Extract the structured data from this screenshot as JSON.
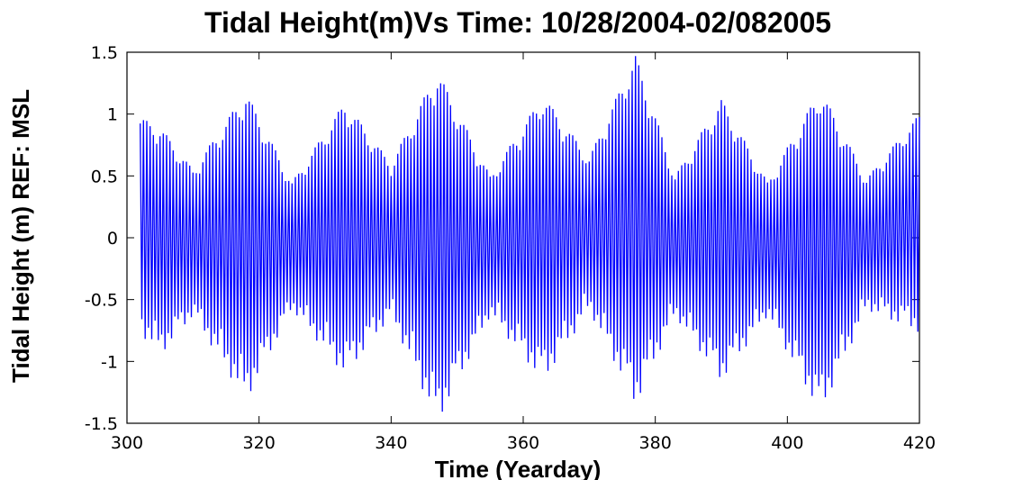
{
  "chart_data": {
    "type": "line",
    "title": "Tidal Height(m)Vs Time: 10/28/2004-02/082005",
    "xlabel": "Time (Yearday)",
    "ylabel": "Tidal Height (m) REF: MSL",
    "xlim": [
      300,
      420
    ],
    "ylim": [
      -1.5,
      1.5
    ],
    "x_ticks": [
      300,
      320,
      340,
      360,
      380,
      400,
      420
    ],
    "y_ticks": [
      -1.5,
      -1,
      -0.5,
      0,
      0.5,
      1,
      1.5
    ],
    "x_tick_labels": [
      "300",
      "320",
      "340",
      "360",
      "380",
      "400",
      "420"
    ],
    "y_tick_labels": [
      "-1.5",
      "-1",
      "-0.5",
      "0",
      "0.5",
      "1",
      "1.5"
    ],
    "grid": false,
    "series": [
      {
        "color": "#0000ff",
        "sampling_interval_days": 0.25,
        "envelope": {
          "yearday": [
            302,
            305,
            310,
            318,
            325,
            333,
            340,
            347,
            355,
            363,
            370,
            377,
            383,
            390,
            397,
            405,
            412,
            420
          ],
          "max": [
            0.97,
            0.9,
            0.55,
            1.18,
            0.45,
            1.1,
            0.6,
            1.35,
            0.5,
            1.15,
            0.65,
            1.48,
            0.5,
            1.12,
            0.45,
            1.2,
            0.48,
            1.0
          ],
          "min": [
            -0.72,
            -0.9,
            -0.6,
            -1.25,
            -0.55,
            -1.05,
            -0.6,
            -1.42,
            -0.6,
            -1.1,
            -0.55,
            -1.28,
            -0.6,
            -1.1,
            -0.6,
            -1.35,
            -0.55,
            -0.72
          ]
        }
      }
    ]
  }
}
